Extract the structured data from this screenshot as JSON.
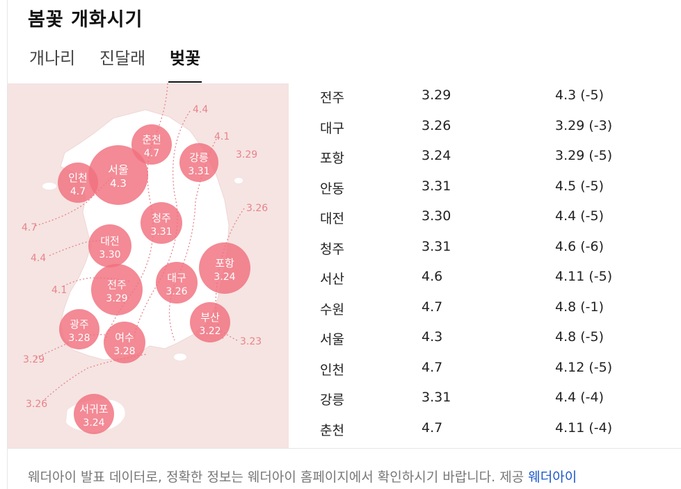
{
  "title": "봄꽃 개화시기",
  "tabs": [
    {
      "label": "개나리",
      "active": false
    },
    {
      "label": "진달래",
      "active": false
    },
    {
      "label": "벚꽃",
      "active": true
    }
  ],
  "map": {
    "bubbles": [
      {
        "name": "춘천",
        "date": "4.7"
      },
      {
        "name": "강릉",
        "date": "3.31"
      },
      {
        "name": "서울",
        "date": "4.3"
      },
      {
        "name": "인천",
        "date": "4.7"
      },
      {
        "name": "청주",
        "date": "3.31"
      },
      {
        "name": "대전",
        "date": "3.30"
      },
      {
        "name": "포항",
        "date": "3.24"
      },
      {
        "name": "전주",
        "date": "3.29"
      },
      {
        "name": "대구",
        "date": "3.26"
      },
      {
        "name": "부산",
        "date": "3.22"
      },
      {
        "name": "광주",
        "date": "3.28"
      },
      {
        "name": "여수",
        "date": "3.28"
      },
      {
        "name": "서귀포",
        "date": "3.24"
      }
    ],
    "isolines": [
      "4.4",
      "4.1",
      "3.29",
      "3.26",
      "4.7",
      "4.4",
      "4.1",
      "3.23",
      "3.29",
      "3.26"
    ]
  },
  "table": {
    "rows": [
      {
        "city": "전주",
        "date": "3.29",
        "last_year": "4.3 (-5)"
      },
      {
        "city": "대구",
        "date": "3.26",
        "last_year": "3.29 (-3)"
      },
      {
        "city": "포항",
        "date": "3.24",
        "last_year": "3.29 (-5)"
      },
      {
        "city": "안동",
        "date": "3.31",
        "last_year": "4.5 (-5)"
      },
      {
        "city": "대전",
        "date": "3.30",
        "last_year": "4.4 (-5)"
      },
      {
        "city": "청주",
        "date": "3.31",
        "last_year": "4.6 (-6)"
      },
      {
        "city": "서산",
        "date": "4.6",
        "last_year": "4.11 (-5)"
      },
      {
        "city": "수원",
        "date": "4.7",
        "last_year": "4.8 (-1)"
      },
      {
        "city": "서울",
        "date": "4.3",
        "last_year": "4.8 (-5)"
      },
      {
        "city": "인천",
        "date": "4.7",
        "last_year": "4.12 (-5)"
      },
      {
        "city": "강릉",
        "date": "3.31",
        "last_year": "4.4 (-4)"
      },
      {
        "city": "춘천",
        "date": "4.7",
        "last_year": "4.11 (-4)"
      }
    ]
  },
  "footer": {
    "notice": "웨더아이 발표 데이터로, 정확한 정보는 웨더아이 홈페이지에서 확인하시기 바랍니다. 제공 ",
    "source": "웨더아이"
  },
  "colors": {
    "bubble": "#f0707e",
    "isoline": "#e8838b",
    "map_bg": "#f5e4e2",
    "land": "#ffffff",
    "link": "#1a57c9"
  }
}
